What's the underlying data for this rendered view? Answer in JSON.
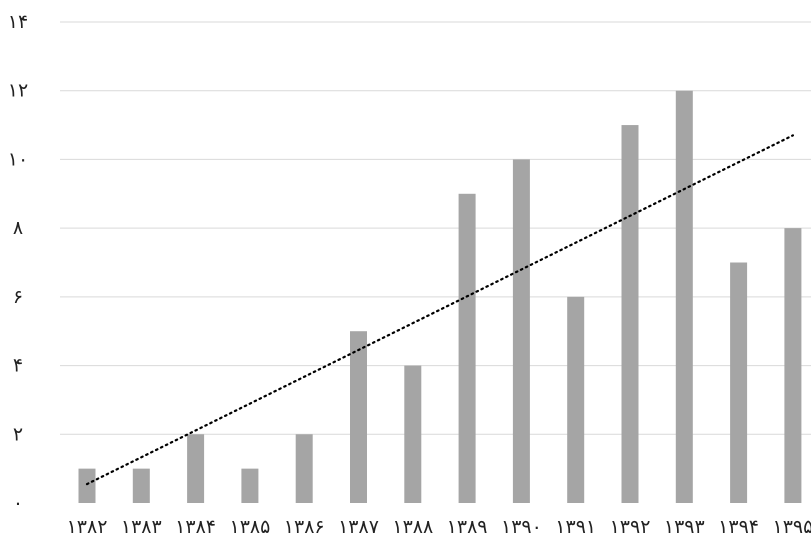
{
  "chart_data": {
    "type": "bar",
    "categories": [
      "۱۳۸۲",
      "۱۳۸۳",
      "۱۳۸۴",
      "۱۳۸۵",
      "۱۳۸۶",
      "۱۳۸۷",
      "۱۳۸۸",
      "۱۳۸۹",
      "۱۳۹۰",
      "۱۳۹۱",
      "۱۳۹۲",
      "۱۳۹۳",
      "۱۳۹۴",
      "۱۳۹۵"
    ],
    "values": [
      1,
      1,
      2,
      1,
      2,
      5,
      4,
      9,
      10,
      6,
      11,
      12,
      7,
      8
    ],
    "yticks": [
      "۰",
      "۲",
      "۴",
      "۶",
      "۸",
      "۱۰",
      "۱۲",
      "۱۴"
    ],
    "ylim": [
      0,
      14
    ],
    "grid": true,
    "trendline": {
      "type": "linear",
      "style": "dotted",
      "start": 0.55,
      "end": 10.7
    },
    "title": "",
    "xlabel": "",
    "ylabel": "",
    "colors": {
      "bar": "#a5a5a5",
      "grid": "#d9d9d9",
      "trendline": "#000000"
    }
  }
}
